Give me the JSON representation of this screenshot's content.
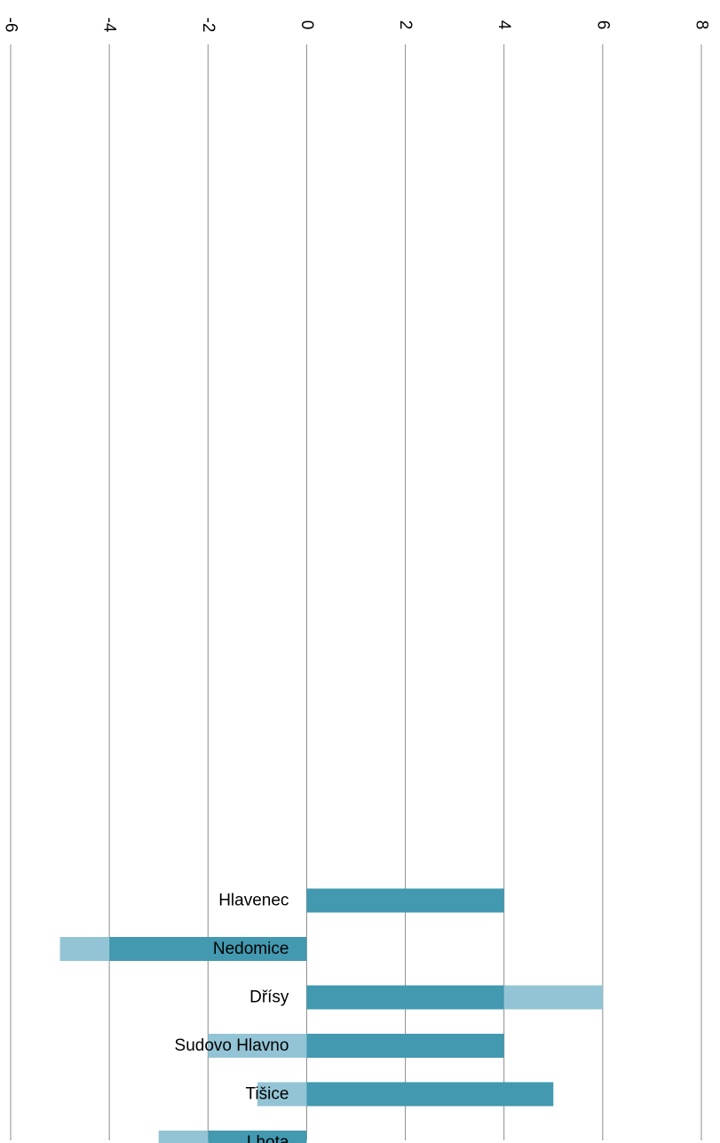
{
  "chart_data": {
    "type": "bar",
    "orientation": "horizontal",
    "stacked": true,
    "categories": [
      "Hlavenec",
      "Nedomice",
      "Dřísy",
      "Sudovo Hlavno",
      "Tišice",
      "Lhota"
    ],
    "series": [
      {
        "values": [
          4,
          -4,
          4,
          4,
          5,
          -2
        ],
        "color": "#4299b0"
      },
      {
        "values": [
          0,
          -1,
          2,
          -2,
          -1,
          -1
        ],
        "color": "#93c4d5"
      }
    ],
    "x_ticks": [
      "-6",
      "-4",
      "-2",
      "0",
      "2",
      "4",
      "6",
      "8"
    ],
    "xlim": [
      -6,
      8
    ],
    "tick_labels_rotated": true,
    "grid": true,
    "legend": "none"
  }
}
